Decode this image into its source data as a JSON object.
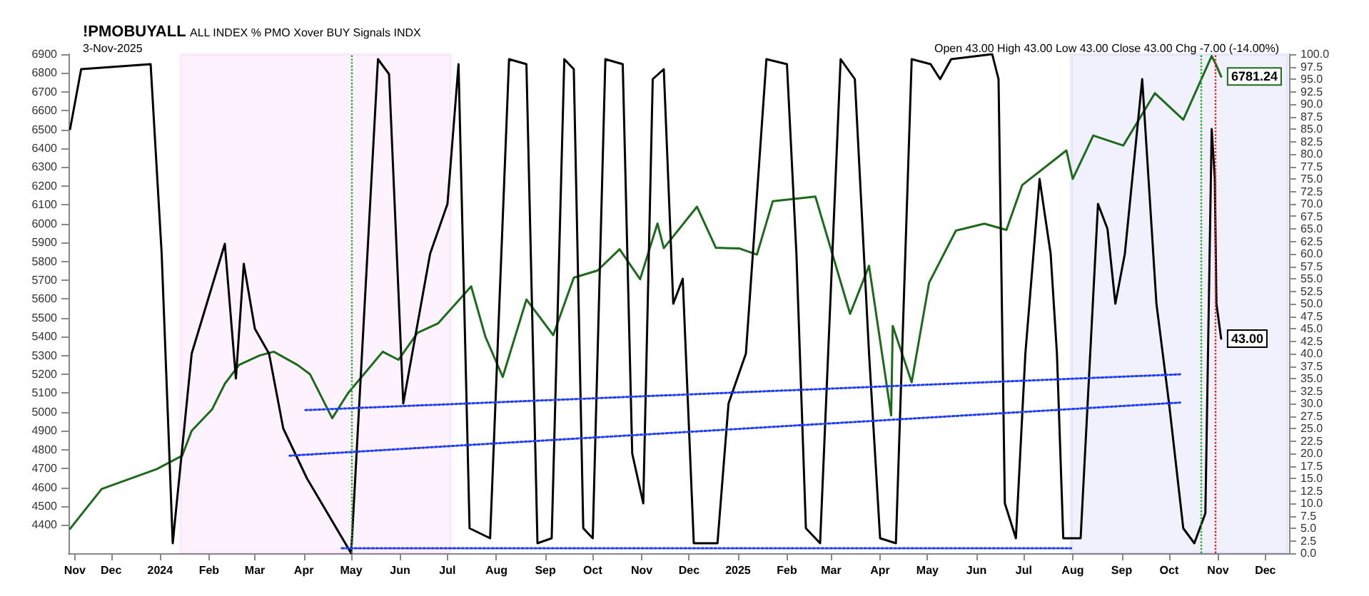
{
  "chart_data": {
    "type": "line",
    "title": "!PMOBUYALL",
    "subtitle": "ALL INDEX % PMO Xover BUY Signals INDX",
    "annotations": [
      "3-Nov-2025",
      "Open 43.00 High 43.00 Low 43.00 Close 43.00 Chg -7.00 (-14.00%)"
    ],
    "xlim": [
      "2023-11-04",
      "2025-12-16"
    ],
    "xticks": [
      {
        "value": "2023-11-08",
        "label": "Nov"
      },
      {
        "value": "2023-12-01",
        "label": "Dec"
      },
      {
        "value": "2024-01-01",
        "label": "2024"
      },
      {
        "value": "2024-02-01",
        "label": "Feb"
      },
      {
        "value": "2024-03-01",
        "label": "Mar"
      },
      {
        "value": "2024-04-01",
        "label": "Apr"
      },
      {
        "value": "2024-05-01",
        "label": "May"
      },
      {
        "value": "2024-06-01",
        "label": "Jun"
      },
      {
        "value": "2024-07-01",
        "label": "Jul"
      },
      {
        "value": "2024-08-01",
        "label": "Aug"
      },
      {
        "value": "2024-09-01",
        "label": "Sep"
      },
      {
        "value": "2024-10-01",
        "label": "Oct"
      },
      {
        "value": "2024-11-01",
        "label": "Nov"
      },
      {
        "value": "2024-12-01",
        "label": "Dec"
      },
      {
        "value": "2025-01-01",
        "label": "2025"
      },
      {
        "value": "2025-02-01",
        "label": "Feb"
      },
      {
        "value": "2025-03-01",
        "label": "Mar"
      },
      {
        "value": "2025-04-01",
        "label": "Apr"
      },
      {
        "value": "2025-05-01",
        "label": "May"
      },
      {
        "value": "2025-06-01",
        "label": "Jun"
      },
      {
        "value": "2025-07-01",
        "label": "Jul"
      },
      {
        "value": "2025-08-01",
        "label": "Aug"
      },
      {
        "value": "2025-09-01",
        "label": "Sep"
      },
      {
        "value": "2025-10-01",
        "label": "Oct"
      },
      {
        "value": "2025-11-01",
        "label": "Nov"
      },
      {
        "value": "2025-12-01",
        "label": "Dec"
      }
    ],
    "ylim": [
      4250,
      6900
    ],
    "yticks": [
      4400,
      4500,
      4600,
      4700,
      4800,
      4900,
      5000,
      5100,
      5200,
      5300,
      5400,
      5500,
      5600,
      5700,
      5800,
      5900,
      6000,
      6100,
      6200,
      6300,
      6400,
      6500,
      6600,
      6700,
      6800,
      6900
    ],
    "y2lim": [
      0,
      100
    ],
    "y2ticks": [
      {
        "value": 0,
        "label": "0.0"
      },
      {
        "value": 2.5,
        "label": "2.5"
      },
      {
        "value": 5,
        "label": "5.0"
      },
      {
        "value": 7.5,
        "label": "7.5"
      },
      {
        "value": 10,
        "label": "10.0"
      },
      {
        "value": 12.5,
        "label": "12.5"
      },
      {
        "value": 15,
        "label": "15.0"
      },
      {
        "value": 17.5,
        "label": "17.5"
      },
      {
        "value": 20,
        "label": "20.0"
      },
      {
        "value": 22.5,
        "label": "22.5"
      },
      {
        "value": 25,
        "label": "25.0"
      },
      {
        "value": 27.5,
        "label": "27.5"
      },
      {
        "value": 30,
        "label": "30.0"
      },
      {
        "value": 32.5,
        "label": "32.5"
      },
      {
        "value": 35,
        "label": "35.0"
      },
      {
        "value": 37.5,
        "label": "37.5"
      },
      {
        "value": 40,
        "label": "40.0"
      },
      {
        "value": 42.5,
        "label": "42.5"
      },
      {
        "value": 45,
        "label": "45.0"
      },
      {
        "value": 47.5,
        "label": "47.5"
      },
      {
        "value": 50,
        "label": "50.0"
      },
      {
        "value": 52.5,
        "label": "52.5"
      },
      {
        "value": 55,
        "label": "55.0"
      },
      {
        "value": 57.5,
        "label": "57.5"
      },
      {
        "value": 60,
        "label": "60.0"
      },
      {
        "value": 62.5,
        "label": "62.5"
      },
      {
        "value": 65,
        "label": "65.0"
      },
      {
        "value": 67.5,
        "label": "67.5"
      },
      {
        "value": 70,
        "label": "70.0"
      },
      {
        "value": 72.5,
        "label": "72.5"
      },
      {
        "value": 75,
        "label": "75.0"
      },
      {
        "value": 77.5,
        "label": "77.5"
      },
      {
        "value": 80,
        "label": "80.0"
      },
      {
        "value": 82.5,
        "label": "82.5"
      },
      {
        "value": 85,
        "label": "85.0"
      },
      {
        "value": 87.5,
        "label": "87.5"
      },
      {
        "value": 90,
        "label": "90.0"
      },
      {
        "value": 92.5,
        "label": "92.5"
      },
      {
        "value": 95,
        "label": "95.0"
      },
      {
        "value": 97.5,
        "label": "97.5"
      },
      {
        "value": 100,
        "label": "100.0"
      }
    ],
    "grid": false,
    "marker": "none",
    "series": [
      {
        "color": "#1b6b1b",
        "line_style": "solid",
        "x": [
          "2023-11-05",
          "2023-11-25",
          "2023-12-30",
          "2024-01-15",
          "2024-01-21",
          "2024-02-03",
          "2024-02-11",
          "2024-02-20",
          "2024-03-04",
          "2024-03-13",
          "2024-03-28",
          "2024-04-05",
          "2024-04-19",
          "2024-04-29",
          "2024-05-08",
          "2024-05-21",
          "2024-05-31",
          "2024-06-12",
          "2024-06-25",
          "2024-07-16",
          "2024-07-25",
          "2024-08-05",
          "2024-08-20",
          "2024-09-06",
          "2024-09-19",
          "2024-10-04",
          "2024-10-18",
          "2024-10-31",
          "2024-11-11",
          "2024-11-15",
          "2024-12-06",
          "2024-12-18",
          "2025-01-02",
          "2025-01-13",
          "2025-01-23",
          "2025-02-19",
          "2025-03-13",
          "2025-03-25",
          "2025-04-08",
          "2025-04-09",
          "2025-04-21",
          "2025-05-02",
          "2025-05-19",
          "2025-06-06",
          "2025-06-20",
          "2025-06-30",
          "2025-07-28",
          "2025-08-01",
          "2025-08-14",
          "2025-09-02",
          "2025-09-22",
          "2025-10-10",
          "2025-10-28",
          "2025-10-31",
          "2025-11-03"
        ],
        "values": [
          4380,
          4591,
          4697,
          4768,
          4900,
          5015,
          5150,
          5250,
          5300,
          5320,
          5250,
          5200,
          4967,
          5100,
          5190,
          5320,
          5277,
          5420,
          5470,
          5667,
          5400,
          5186,
          5597,
          5408,
          5713,
          5751,
          5864,
          5705,
          6001,
          5870,
          6090,
          5872,
          5868,
          5836,
          6119,
          6144,
          5521,
          5776,
          4982,
          5457,
          5158,
          5686,
          5963,
          6000,
          5967,
          6205,
          6389,
          6238,
          6468,
          6415,
          6693,
          6552,
          6890,
          6840,
          6781.24
        ],
        "value_labels": [
          null,
          null,
          null,
          null,
          null,
          null,
          null,
          null,
          null,
          null,
          null,
          null,
          null,
          null,
          null,
          null,
          null,
          null,
          null,
          null,
          null,
          null,
          null,
          null,
          null,
          null,
          null,
          null,
          null,
          null,
          null,
          null,
          null,
          null,
          null,
          null,
          null,
          null,
          null,
          null,
          null,
          null,
          null,
          null,
          null,
          null,
          null,
          null,
          null,
          null,
          null,
          null,
          null,
          null,
          "6781.24"
        ]
      },
      {
        "axis": "y2",
        "color": "#000000",
        "line_style": "solid",
        "x": [
          "2023-11-05",
          "2023-11-12",
          "2023-12-26",
          "2024-01-02",
          "2024-01-09",
          "2024-01-21",
          "2024-02-11",
          "2024-02-18",
          "2024-02-23",
          "2024-03-01",
          "2024-03-10",
          "2024-03-19",
          "2024-04-03",
          "2024-05-01",
          "2024-05-18",
          "2024-05-25",
          "2024-06-03",
          "2024-06-20",
          "2024-07-01",
          "2024-07-08",
          "2024-07-15",
          "2024-07-28",
          "2024-08-09",
          "2024-08-20",
          "2024-08-27",
          "2024-09-05",
          "2024-09-13",
          "2024-09-19",
          "2024-09-25",
          "2024-10-01",
          "2024-10-09",
          "2024-10-20",
          "2024-10-26",
          "2024-11-02",
          "2024-11-08",
          "2024-11-15",
          "2024-11-21",
          "2024-11-27",
          "2024-12-04",
          "2024-12-19",
          "2024-12-26",
          "2025-01-06",
          "2025-01-19",
          "2025-02-01",
          "2025-02-07",
          "2025-02-13",
          "2025-02-22",
          "2025-03-07",
          "2025-03-16",
          "2025-03-25",
          "2025-04-01",
          "2025-04-11",
          "2025-04-21",
          "2025-05-03",
          "2025-05-09",
          "2025-05-16",
          "2025-06-11",
          "2025-06-15",
          "2025-06-19",
          "2025-06-26",
          "2025-07-02",
          "2025-07-11",
          "2025-07-18",
          "2025-07-22",
          "2025-07-26",
          "2025-08-06",
          "2025-08-17",
          "2025-08-23",
          "2025-08-28",
          "2025-09-03",
          "2025-09-14",
          "2025-09-23",
          "2025-10-01",
          "2025-10-10",
          "2025-10-17",
          "2025-10-24",
          "2025-10-28",
          "2025-10-30",
          "2025-10-31",
          "2025-11-03"
        ],
        "values": [
          85,
          97,
          98,
          60,
          2,
          40,
          62,
          35,
          58,
          45,
          40,
          25,
          15,
          0,
          99,
          96,
          30,
          60,
          70,
          98,
          5,
          3,
          99,
          98,
          2,
          3,
          99,
          97,
          5,
          3,
          99,
          98,
          20,
          10,
          95,
          97,
          50,
          55,
          2,
          2,
          30,
          40,
          99,
          98,
          60,
          5,
          2,
          99,
          95,
          40,
          3,
          2,
          99,
          98,
          95,
          99,
          100,
          95,
          10,
          3,
          40,
          75,
          60,
          40,
          3,
          3,
          70,
          65,
          50,
          60,
          95,
          50,
          30,
          5,
          2,
          8,
          85,
          75,
          50,
          43
        ],
        "value_labels": [
          null,
          null,
          null,
          null,
          null,
          null,
          null,
          null,
          null,
          null,
          null,
          null,
          null,
          null,
          null,
          null,
          null,
          null,
          null,
          null,
          null,
          null,
          null,
          null,
          null,
          null,
          null,
          null,
          null,
          null,
          null,
          null,
          null,
          null,
          null,
          null,
          null,
          null,
          null,
          null,
          null,
          null,
          null,
          null,
          null,
          null,
          null,
          null,
          null,
          null,
          null,
          null,
          null,
          null,
          null,
          null,
          null,
          null,
          null,
          null,
          null,
          null,
          null,
          null,
          null,
          null,
          null,
          null,
          null,
          null,
          null,
          null,
          null,
          null,
          null,
          null,
          null,
          null,
          null,
          "43.00"
        ]
      },
      {
        "color": "#1f3cff",
        "line_style": "dotted",
        "x": [
          "2024-04-02",
          "2025-10-08"
        ],
        "values": [
          5010,
          5200
        ]
      },
      {
        "color": "#1f3cff",
        "line_style": "dotted",
        "x": [
          "2024-03-23",
          "2025-10-08"
        ],
        "values": [
          4768,
          5050
        ]
      },
      {
        "axis": "y2",
        "color": "#1f3cff",
        "line_style": "dotted",
        "x": [
          "2024-04-25",
          "2025-07-31"
        ],
        "values": [
          1,
          1
        ]
      }
    ],
    "bands": [
      {
        "axis": "x",
        "from": "2024-01-14",
        "to": "2024-07-03",
        "color": "#e020e0"
      },
      {
        "axis": "x",
        "from": "2025-07-31",
        "to": "2025-12-15",
        "color": "#1010e0"
      }
    ],
    "ref_lines": [
      {
        "axis": "x",
        "value": "2024-05-01",
        "color": "#22aa22",
        "line_style": "dotted"
      },
      {
        "axis": "x",
        "value": "2025-10-21",
        "color": "#22aa22",
        "line_style": "dotted"
      },
      {
        "axis": "x",
        "value": "2025-10-30",
        "color": "#e02020",
        "line_style": "dotted"
      }
    ]
  }
}
